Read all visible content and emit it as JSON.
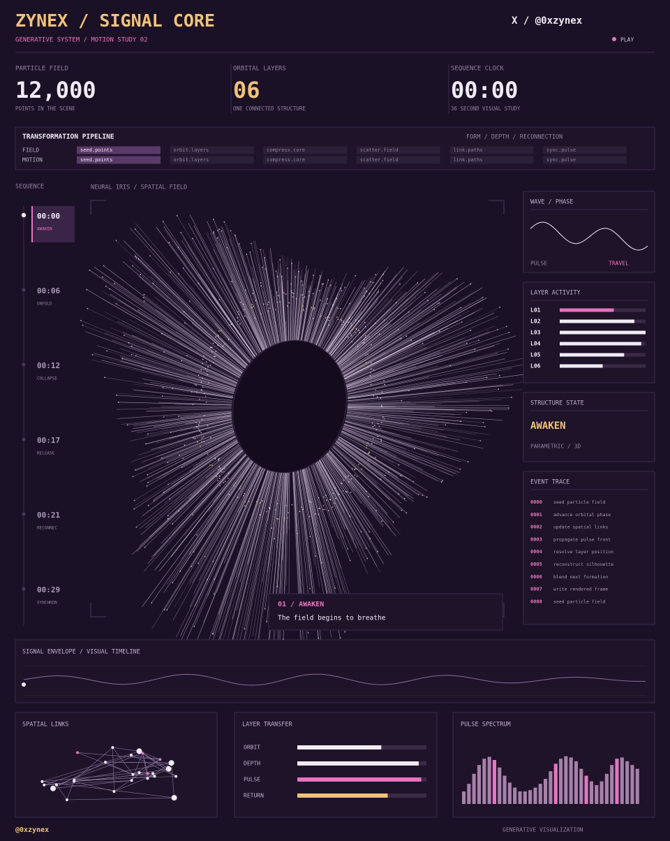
{
  "header": {
    "title": "ZYNEX / SIGNAL CORE",
    "subtitle": "GENERATIVE SYSTEM / MOTION STUDY 02",
    "handle": "X / @0xzynex",
    "play": "PLAY"
  },
  "stats": [
    {
      "label": "PARTICLE FIELD",
      "value": "12,000",
      "note": "POINTS IN THE SCENE"
    },
    {
      "label": "ORBITAL LAYERS",
      "value": "06",
      "note": "ONE CONNECTED STRUCTURE"
    },
    {
      "label": "SEQUENCE CLOCK",
      "value": "00:00",
      "note": "36 SECOND VISUAL STUDY"
    }
  ],
  "pipeline": {
    "title": "TRANSFORMATION PIPELINE",
    "tag": "FORM / DEPTH / RECONNECTION",
    "rows": [
      {
        "label": "FIELD",
        "steps": [
          "seed.points",
          "orbit.layers",
          "compress.core",
          "scatter.field",
          "link.paths",
          "sync.pulse"
        ]
      },
      {
        "label": "MOTION",
        "steps": [
          "seed.points",
          "orbit.layers",
          "compress.core",
          "scatter.field",
          "link.paths",
          "sync.pulse"
        ]
      }
    ]
  },
  "sequence": {
    "title": "SEQUENCE",
    "steps": [
      {
        "time": "00:00",
        "label": "AWAKEN"
      },
      {
        "time": "00:06",
        "label": "UNFOLD"
      },
      {
        "time": "00:12",
        "label": "COLLAPSE"
      },
      {
        "time": "00:17",
        "label": "RELEASE"
      },
      {
        "time": "00:21",
        "label": "RECONNEC"
      },
      {
        "time": "00:29",
        "label": "SYNCHRON"
      }
    ]
  },
  "stage": {
    "title": "NEURAL IRIS / SPATIAL FIELD",
    "caption_title": "01 / AWAKEN",
    "caption_text": "The field begins to breathe"
  },
  "wave": {
    "title": "WAVE / PHASE",
    "left": "PULSE",
    "right": "TRAVEL"
  },
  "layer_activity": {
    "title": "LAYER ACTIVITY",
    "max": 100,
    "layers": [
      {
        "label": "L01",
        "value": 63,
        "color": "#e874c0"
      },
      {
        "label": "L02",
        "value": 87,
        "color": "#f1ebf4"
      },
      {
        "label": "L03",
        "value": 100,
        "color": "#f1ebf4"
      },
      {
        "label": "L04",
        "value": 95,
        "color": "#f1ebf4"
      },
      {
        "label": "L05",
        "value": 75,
        "color": "#f1ebf4"
      },
      {
        "label": "L06",
        "value": 50,
        "color": "#f1ebf4"
      }
    ]
  },
  "structure": {
    "title": "STRUCTURE STATE",
    "state": "AWAKEN",
    "note": "PARAMETRIC / 3D"
  },
  "events": {
    "title": "EVENT TRACE",
    "items": [
      {
        "id": "0000",
        "text": "seed particle field"
      },
      {
        "id": "0001",
        "text": "advance orbital phase"
      },
      {
        "id": "0002",
        "text": "update spatial links"
      },
      {
        "id": "0003",
        "text": "propagate pulse front"
      },
      {
        "id": "0004",
        "text": "resolve layer position"
      },
      {
        "id": "0005",
        "text": "reconstruct silhouette"
      },
      {
        "id": "0006",
        "text": "blend next formation"
      },
      {
        "id": "0007",
        "text": "write rendered frame"
      },
      {
        "id": "0008",
        "text": "seed particle field"
      }
    ]
  },
  "envelope": {
    "title": "SIGNAL ENVELOPE / VISUAL TIMELINE"
  },
  "spatial_links": {
    "title": "SPATIAL LINKS"
  },
  "layer_transfer": {
    "title": "LAYER TRANSFER",
    "max": 100,
    "rows": [
      {
        "label": "ORBIT",
        "value": 65,
        "color": "#f1ebf4"
      },
      {
        "label": "DEPTH",
        "value": 94,
        "color": "#f1ebf4"
      },
      {
        "label": "PULSE",
        "value": 96,
        "color": "#e874c0"
      },
      {
        "label": "RETURN",
        "value": 70,
        "color": "#f0c27a"
      }
    ]
  },
  "pulse_spectrum": {
    "title": "PULSE SPECTRUM",
    "ylim": [
      0,
      100
    ],
    "color": "#a681a8",
    "highlight_color": "#e874c0",
    "highlight": [
      6,
      18,
      24,
      30
    ],
    "values": [
      20,
      32,
      48,
      62,
      72,
      75,
      70,
      58,
      45,
      34,
      26,
      20,
      20,
      22,
      26,
      32,
      40,
      52,
      64,
      72,
      76,
      74,
      68,
      56,
      45,
      36,
      30,
      36,
      48,
      62,
      72,
      74,
      68,
      62,
      56
    ]
  },
  "footer": {
    "handle": "@0xzynex",
    "label": "GENERATIVE VISUALIZATION"
  }
}
